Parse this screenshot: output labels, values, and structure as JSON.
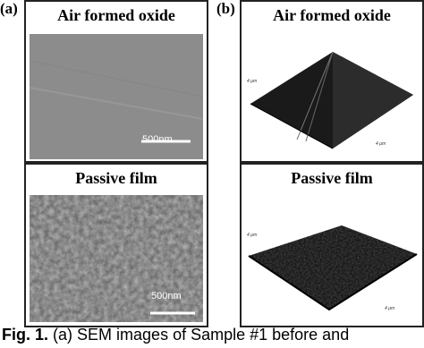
{
  "panels": [
    {
      "label": "(a)",
      "images": [
        {
          "title": "Air formed oxide",
          "scale_bar": "500nm"
        },
        {
          "title": "Passive film",
          "scale_bar": "500nm"
        }
      ]
    },
    {
      "label": "(b)",
      "images": [
        {
          "title": "Air formed oxide",
          "axis_labels": [
            "4 µm",
            "4 µm"
          ]
        },
        {
          "title": "Passive film",
          "axis_labels": [
            "4 µm",
            "4 µm"
          ]
        }
      ]
    }
  ],
  "caption": {
    "label": "Fig. 1.",
    "text": "(a) SEM images of Sample #1 before and"
  }
}
